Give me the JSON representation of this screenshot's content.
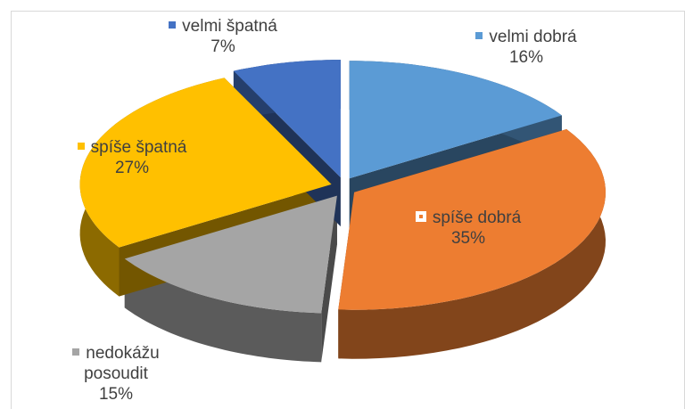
{
  "chart_data": {
    "type": "pie3d",
    "categories": [
      "velmi dobrá",
      "spíše dobrá",
      "nedokážu posoudit",
      "spíše špatná",
      "velmi špatná"
    ],
    "values": [
      16,
      35,
      15,
      27,
      7
    ],
    "value_labels": [
      "16%",
      "35%",
      "15%",
      "27%",
      "7%"
    ],
    "colors": [
      "#5b9bd5",
      "#ed7d31",
      "#a5a5a5",
      "#ffc000",
      "#4472c4"
    ]
  }
}
